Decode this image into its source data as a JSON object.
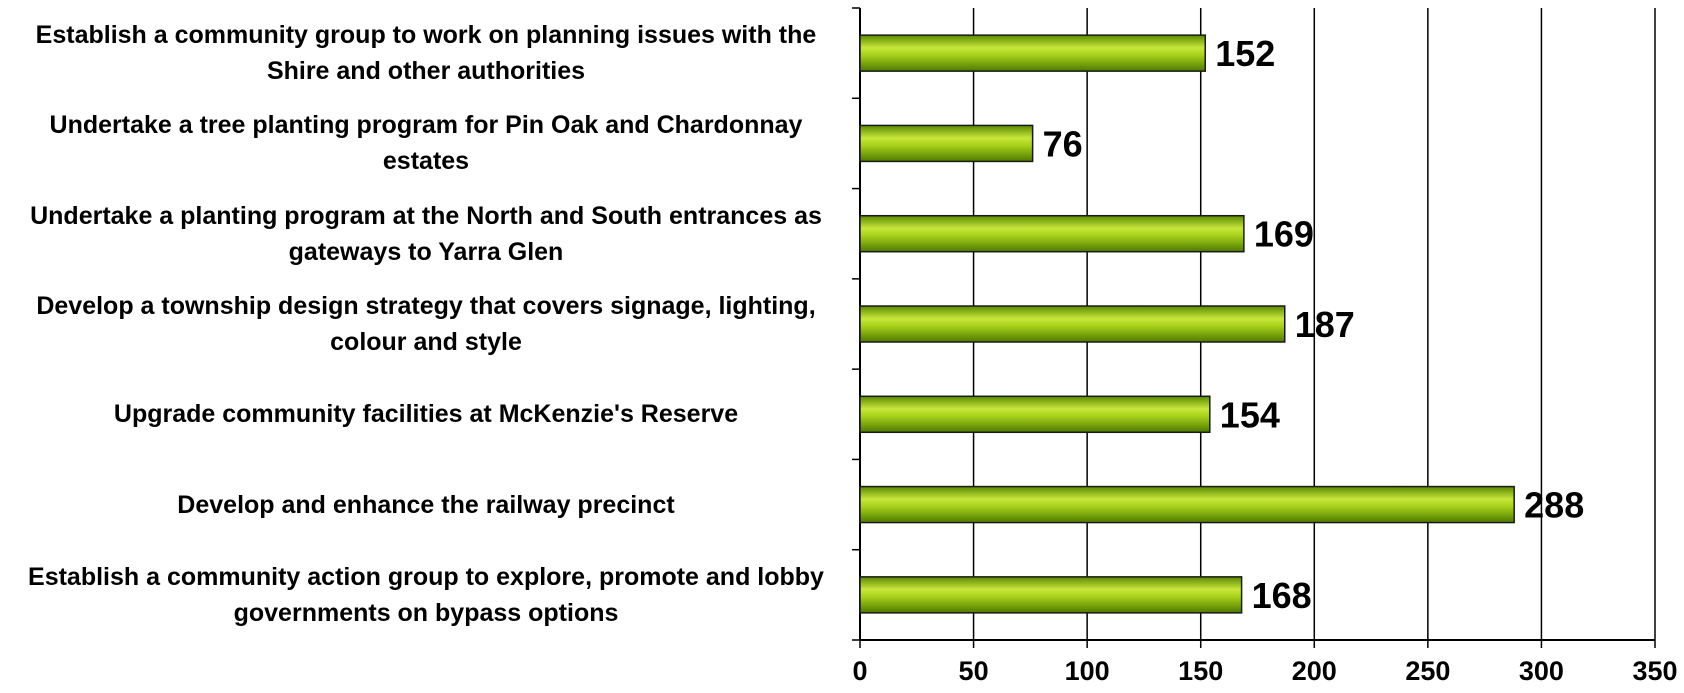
{
  "chart_data": {
    "type": "bar",
    "orientation": "horizontal",
    "categories": [
      "Establish a community group to work on planning issues with the Shire and other authorities",
      "Undertake a tree planting program for Pin Oak and Chardonnay estates",
      "Undertake a planting program at the North and South entrances as gateways to Yarra Glen",
      "Develop a township design strategy that covers signage, lighting, colour and style",
      "Upgrade community facilities at McKenzie's Reserve",
      "Develop and enhance the railway precinct",
      "Establish a community action group to explore, promote and lobby governments on bypass options"
    ],
    "values": [
      152,
      76,
      169,
      187,
      154,
      288,
      168
    ],
    "data_labels": [
      "152",
      "76",
      "169",
      "187",
      "154",
      "288",
      "168"
    ],
    "xlim": [
      0,
      350
    ],
    "x_ticks": [
      "0",
      "50",
      "100",
      "150",
      "200",
      "250",
      "300",
      "350"
    ],
    "title": "",
    "xlabel": "",
    "ylabel": "",
    "grid": "vertical gridlines",
    "legend": "none",
    "colors": {
      "bar_light": "#c8e63c",
      "bar_mid": "#8fbf0a",
      "bar_dark": "#4f7a00",
      "bar_edge": "#1a1a1a",
      "grid": "#000000"
    }
  }
}
